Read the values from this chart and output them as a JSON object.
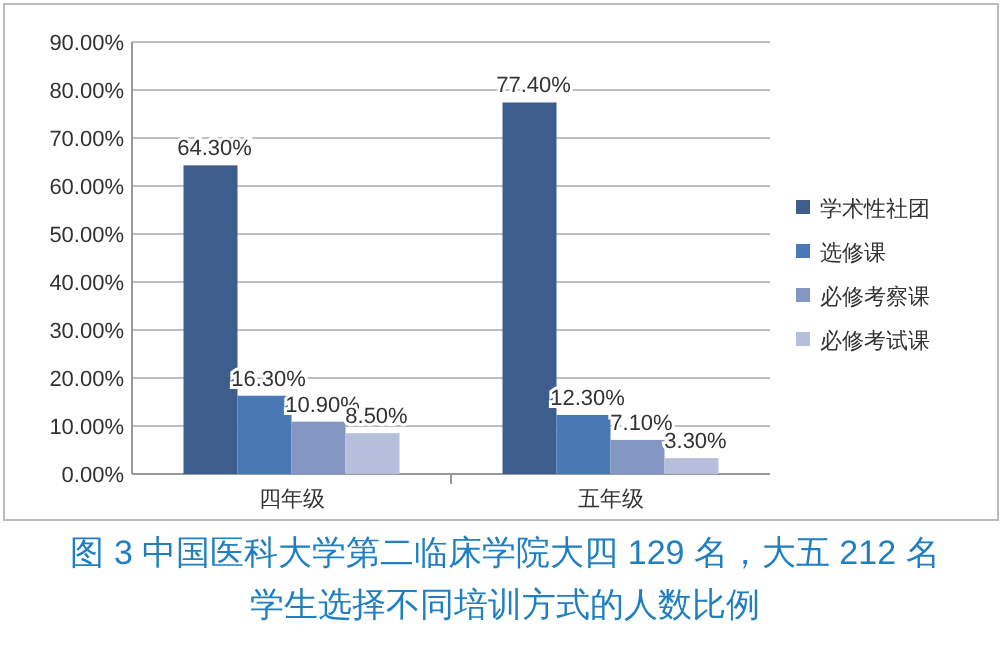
{
  "chart_data": {
    "type": "bar",
    "title": "图 3 中国医科大学第二临床学院大四 129 名，大五 212 名学生选择不同培训方式的人数比例",
    "categories": [
      "四年级",
      "五年级"
    ],
    "series": [
      {
        "name": "学术性社团",
        "color": "#3d5e8c",
        "values": [
          64.3,
          77.4
        ],
        "value_labels": [
          "64.30%",
          "77.40%"
        ]
      },
      {
        "name": "选修课",
        "color": "#4a78b5",
        "values": [
          16.3,
          12.3
        ],
        "value_labels": [
          "16.30%",
          "12.30%"
        ]
      },
      {
        "name": "必修考察课",
        "color": "#8497c2",
        "values": [
          10.9,
          7.1
        ],
        "value_labels": [
          "10.90%",
          "7.10%"
        ]
      },
      {
        "name": "必修考试课",
        "color": "#b5bedb",
        "values": [
          8.5,
          3.3
        ],
        "value_labels": [
          "8.50%",
          "3.30%"
        ]
      }
    ],
    "ylim": [
      0,
      90
    ],
    "yticks": [
      {
        "value": 0,
        "label": "0.00%"
      },
      {
        "value": 10,
        "label": "10.00%"
      },
      {
        "value": 20,
        "label": "20.00%"
      },
      {
        "value": 30,
        "label": "30.00%"
      },
      {
        "value": 40,
        "label": "40.00%"
      },
      {
        "value": 50,
        "label": "50.00%"
      },
      {
        "value": 60,
        "label": "60.00%"
      },
      {
        "value": 70,
        "label": "70.00%"
      },
      {
        "value": 80,
        "label": "80.00%"
      },
      {
        "value": 90,
        "label": "90.00%"
      }
    ],
    "grid": "y",
    "legend": "right"
  }
}
